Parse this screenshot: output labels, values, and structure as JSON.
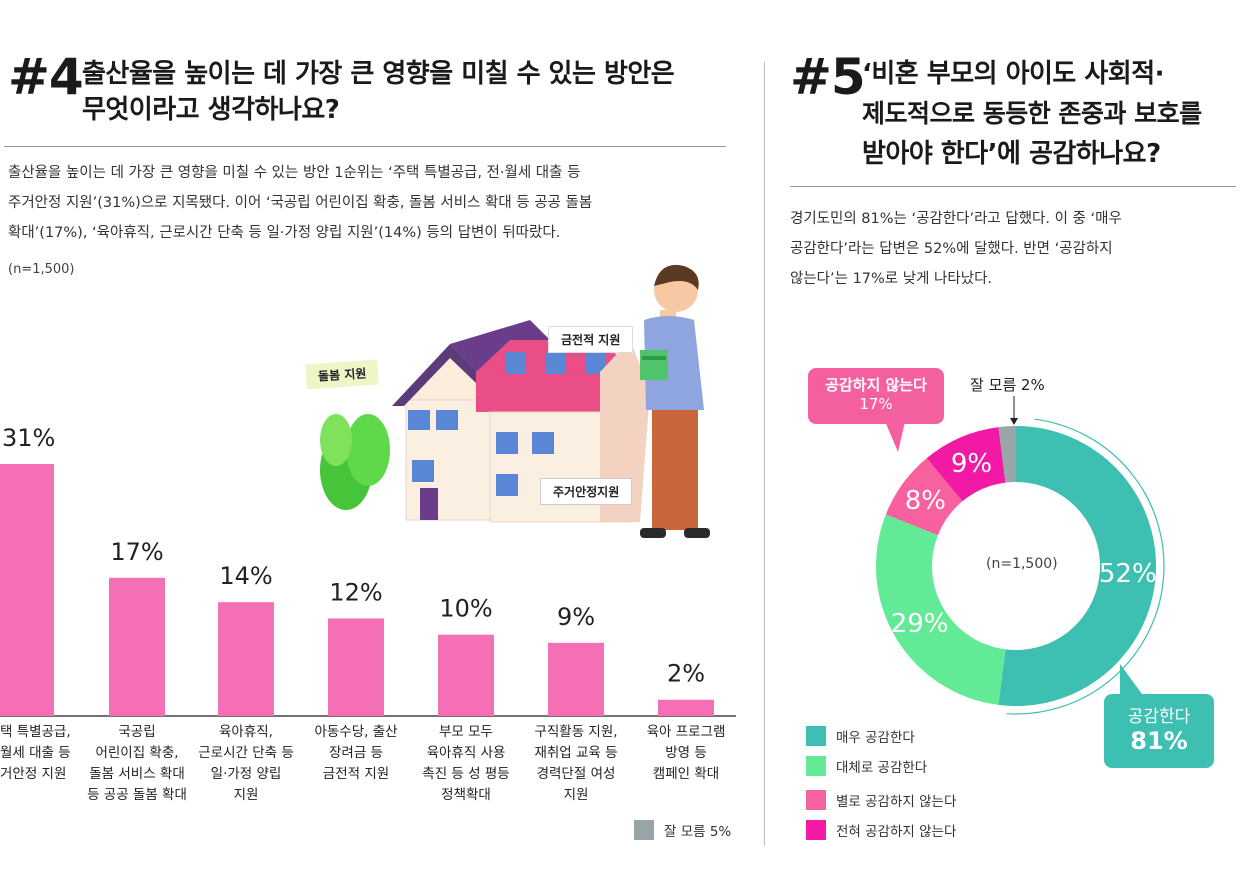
{
  "q4": {
    "number": "#4",
    "title_line1": "출산율을 높이는 데 가장 큰 영향을 미칠 수 있는 방안은",
    "title_line2": "무엇이라고 생각하나요?",
    "body_line1": "출산율을 높이는 데 가장 큰 영향을 미칠 수 있는 방안 1순위는 ‘주택 특별공급, 전·월세 대출 등",
    "body_line2": "주거안정 지원’(31%)으로 지목됐다. 이어 ‘국공립 어린이집 확충, 돌봄 서비스 확대 등 공공 돌봄",
    "body_line3": "확대’(17%), ‘육아휴직, 근로시간 단축 등 일·가정 양립 지원’(14%) 등의 답변이 뒤따랐다.",
    "n_label": "(n=1,500)",
    "illustration_tags": [
      "돌봄 지원",
      "금전적 지원",
      "주거안정지원"
    ],
    "dont_know_label": "잘 모름 5%"
  },
  "q5": {
    "number": "#5",
    "title_line1": "‘비혼 부모의 아이도 사회적·",
    "title_line2": "제도적으로 동등한 존중과 보호를",
    "title_line3": "받아야 한다’에 공감하나요?",
    "body_line1": "경기도민의 81%는 ‘공감한다’라고 답했다. 이 중 ‘매우",
    "body_line2": "공감한다’라는 답변은 52%에 달했다. 반면 ‘공감하지",
    "body_line3": "않는다’는 17%로 낮게 나타났다.",
    "center_label": "(n=1,500)",
    "callout_disagree_line1": "공감하지 않는다",
    "callout_disagree_line2": "17%",
    "callout_dontknow": "잘 모름 2%",
    "callout_agree_line1": "공감한다",
    "callout_agree_line2": "81%"
  },
  "colors": {
    "bar": "#f56fb4",
    "teal": "#3dbfb1",
    "green": "#63ea96",
    "pink": "#f8609f",
    "magenta": "#f21aa4",
    "gray": "#9aa5a8",
    "callout_agree": "#3dbfb1",
    "callout_disagree": "#f4609f"
  },
  "chart_data": [
    {
      "type": "bar",
      "categories": [
        [
          "택 특별공급,",
          "월세 대출 등",
          "거안정 지원"
        ],
        [
          "국공립",
          "어린이집 확충,",
          "돌봄 서비스 확대",
          "등 공공 돌봄 확대"
        ],
        [
          "육아휴직,",
          "근로시간 단축 등",
          "일·가정 양립",
          "지원"
        ],
        [
          "아동수당, 출산",
          "장려금 등",
          "금전적 지원"
        ],
        [
          "부모 모두",
          "육아휴직 사용",
          "촉진 등 성 평등",
          "정책확대"
        ],
        [
          "구직활동 지원,",
          "재취업 교육 등",
          "경력단절 여성",
          "지원"
        ],
        [
          "육아 프로그램",
          "방영 등",
          "캠페인 확대"
        ]
      ],
      "values": [
        31,
        17,
        14,
        12,
        10,
        9,
        2
      ],
      "value_labels": [
        "31%",
        "17%",
        "14%",
        "12%",
        "10%",
        "9%",
        "2%"
      ],
      "ylim": [
        0,
        31
      ]
    },
    {
      "type": "pie",
      "labels": [
        "매우 공감한다",
        "대체로 공감한다",
        "별로 공감하지 않는다",
        "전혀 공감하지 않는다",
        "잘 모름"
      ],
      "values": [
        52,
        29,
        8,
        9,
        2
      ],
      "slice_labels": [
        "52%",
        "29%",
        "8%",
        "9%",
        ""
      ],
      "colors": [
        "#3dbfb1",
        "#63ea96",
        "#f8609f",
        "#f21aa4",
        "#9aa5a8"
      ],
      "legend": [
        "매우 공감한다",
        "대체로 공감한다",
        "별로 공감하지 않는다",
        "전혀 공감하지 않는다"
      ],
      "legend_placement": "bottom-left"
    }
  ]
}
